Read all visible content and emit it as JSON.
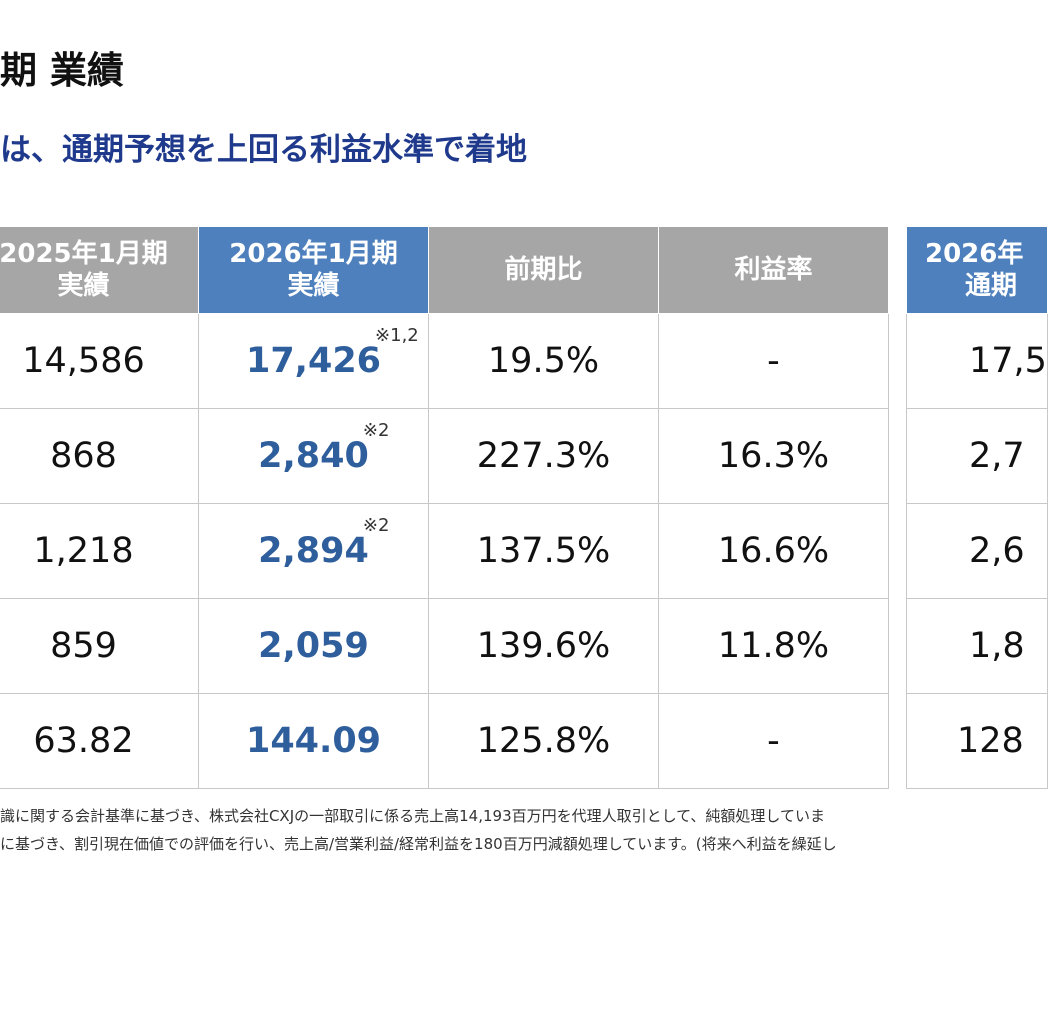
{
  "header": {
    "title": "期 業績",
    "subtitle": "は、通期予想を上回る利益水準で着地"
  },
  "table": {
    "columns": [
      {
        "line1": "2025年1月期",
        "line2": "実績",
        "style": "gray"
      },
      {
        "line1": "2026年1月期",
        "line2": "実績",
        "style": "blue"
      },
      {
        "line1": "前期比",
        "line2": "",
        "style": "gray"
      },
      {
        "line1": "利益率",
        "line2": "",
        "style": "gray"
      }
    ],
    "rows": [
      {
        "prev": "14,586",
        "curr": "17,426",
        "note": "※1,2",
        "yoy": "19.5%",
        "margin": "-"
      },
      {
        "prev": "868",
        "curr": "2,840",
        "note": "※2",
        "yoy": "227.3%",
        "margin": "16.3%"
      },
      {
        "prev": "1,218",
        "curr": "2,894",
        "note": "※2",
        "yoy": "137.5%",
        "margin": "16.6%"
      },
      {
        "prev": "859",
        "curr": "2,059",
        "note": "",
        "yoy": "139.6%",
        "margin": "11.8%"
      },
      {
        "prev": "63.82",
        "curr": "144.09",
        "note": "",
        "yoy": "125.8%",
        "margin": "-"
      }
    ]
  },
  "side_table": {
    "header_line1": "2026年",
    "header_line2": "通期",
    "values": [
      "17,5",
      "2,7",
      "2,6",
      "1,8",
      "128"
    ]
  },
  "footnotes": [
    "識に関する会計基準に基づき、株式会社CXJの一部取引に係る売上高14,193百万円を代理人取引として、純額処理していま",
    "に基づき、割引現在価値での評価を行い、売上高/営業利益/経常利益を180百万円減額処理しています。(将来へ利益を繰延し"
  ],
  "colors": {
    "header_gray": "#a6a6a6",
    "header_blue": "#4e80bd",
    "value_blue": "#2f5e9c",
    "subtitle_navy": "#1f3a8c"
  }
}
